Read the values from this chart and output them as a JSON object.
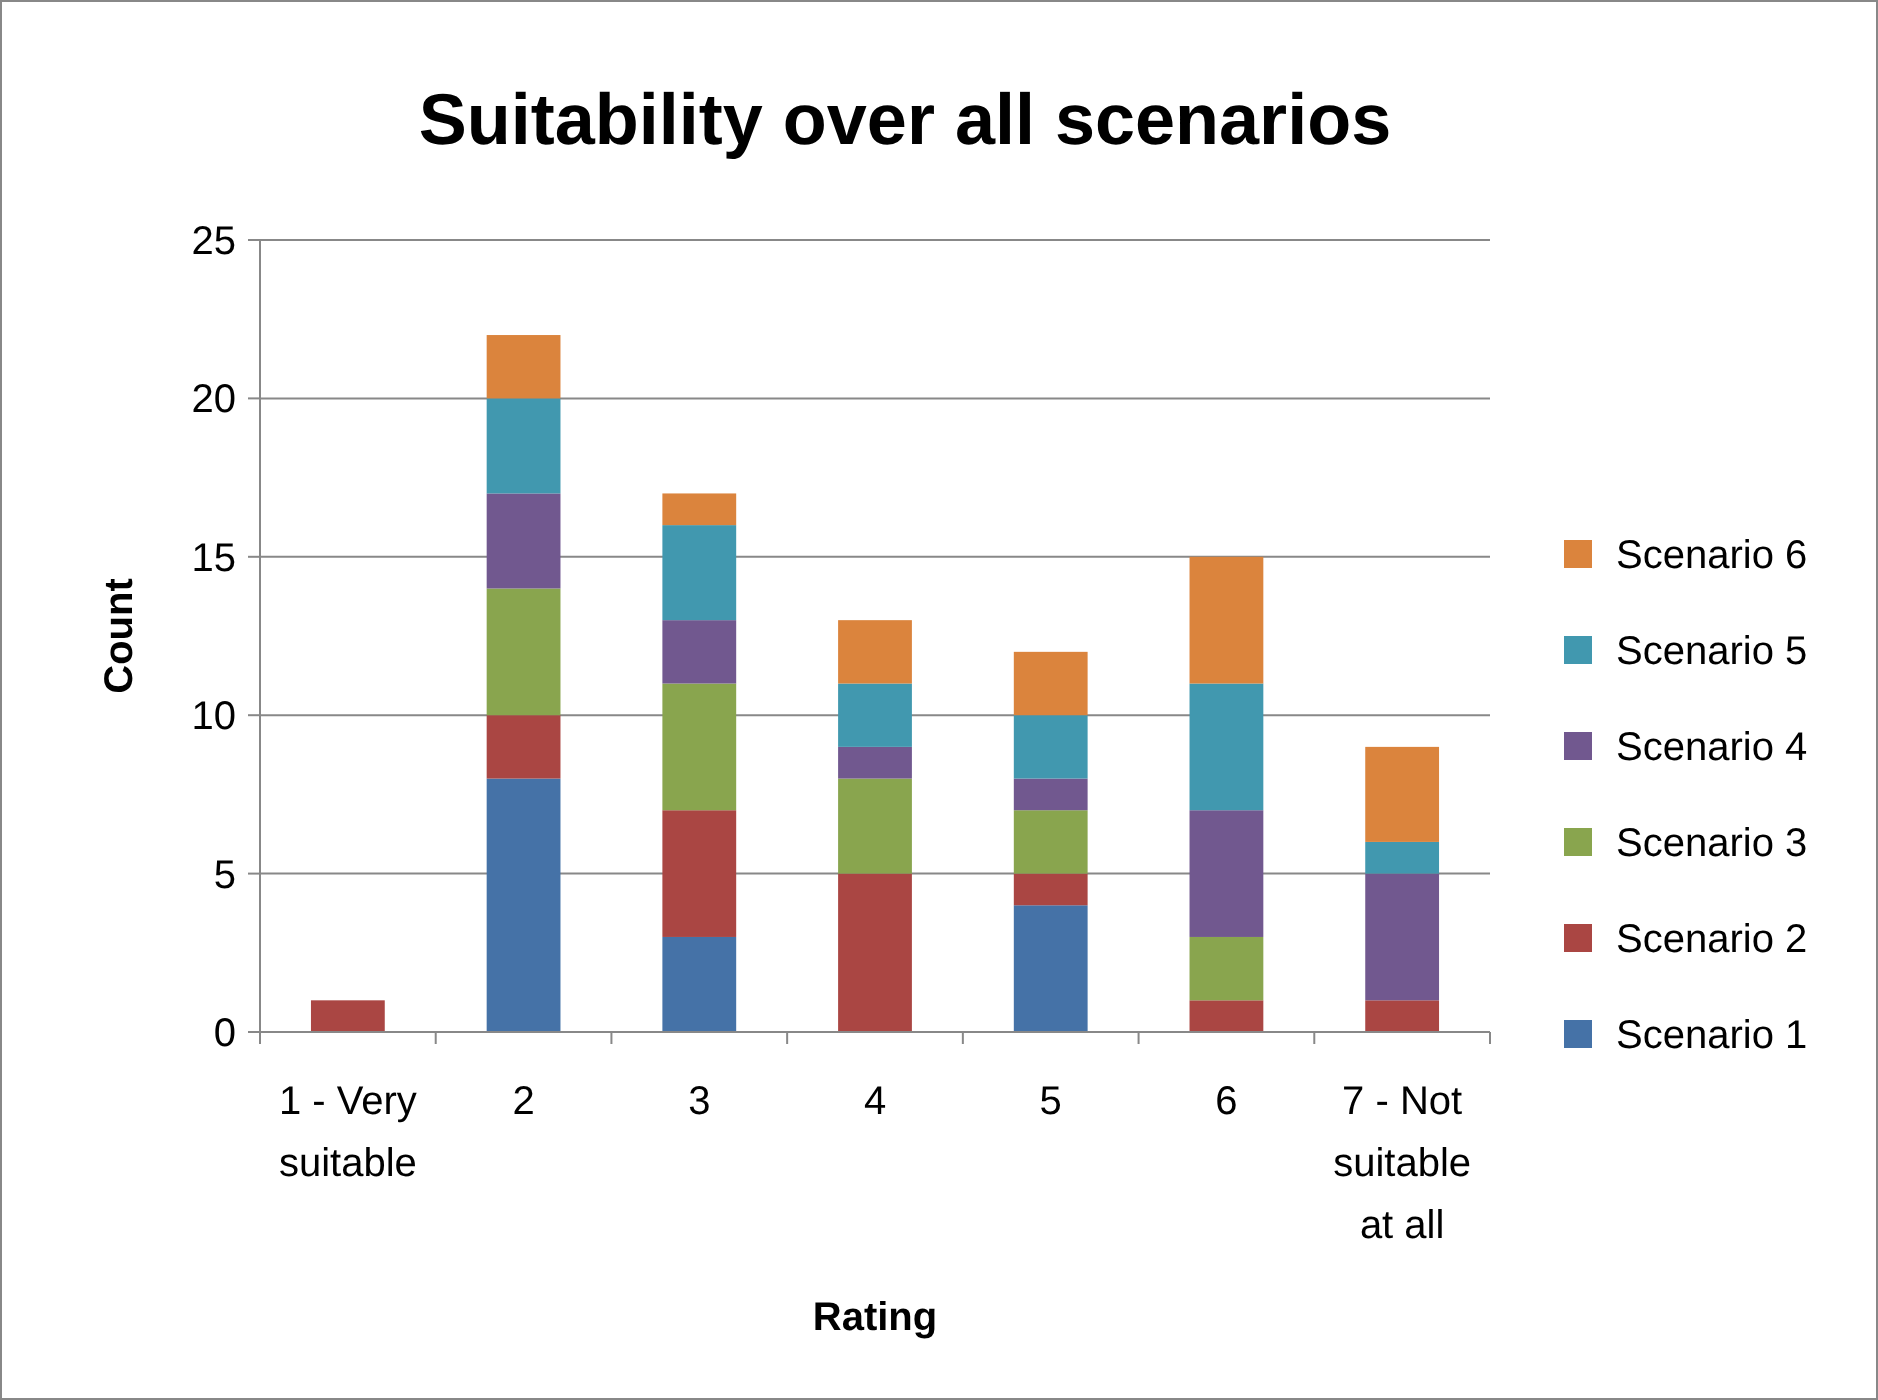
{
  "chart_data": {
    "type": "bar",
    "title": "Suitability over all scenarios",
    "xlabel": "Rating",
    "ylabel": "Count",
    "categories": [
      "1 - Very suitable",
      "2",
      "3",
      "4",
      "5",
      "6",
      "7 - Not suitable at all"
    ],
    "stacked": true,
    "ylim": [
      0,
      25
    ],
    "yticks": [
      0,
      5,
      10,
      15,
      20,
      25
    ],
    "grid": "y",
    "legend": "right",
    "series": [
      {
        "name": "Scenario 1",
        "color": "#4572a7",
        "values": [
          0,
          8,
          3,
          0,
          4,
          0,
          0
        ]
      },
      {
        "name": "Scenario 2",
        "color": "#aa4643",
        "values": [
          1,
          2,
          4,
          5,
          1,
          1,
          1
        ]
      },
      {
        "name": "Scenario 3",
        "color": "#89a54e",
        "values": [
          0,
          4,
          4,
          3,
          2,
          2,
          0
        ]
      },
      {
        "name": "Scenario 4",
        "color": "#71588f",
        "values": [
          0,
          3,
          2,
          1,
          1,
          4,
          4
        ]
      },
      {
        "name": "Scenario 5",
        "color": "#4198af",
        "values": [
          0,
          3,
          3,
          2,
          2,
          4,
          1
        ]
      },
      {
        "name": "Scenario 6",
        "color": "#db843d",
        "values": [
          0,
          2,
          1,
          2,
          2,
          4,
          3
        ]
      }
    ]
  }
}
